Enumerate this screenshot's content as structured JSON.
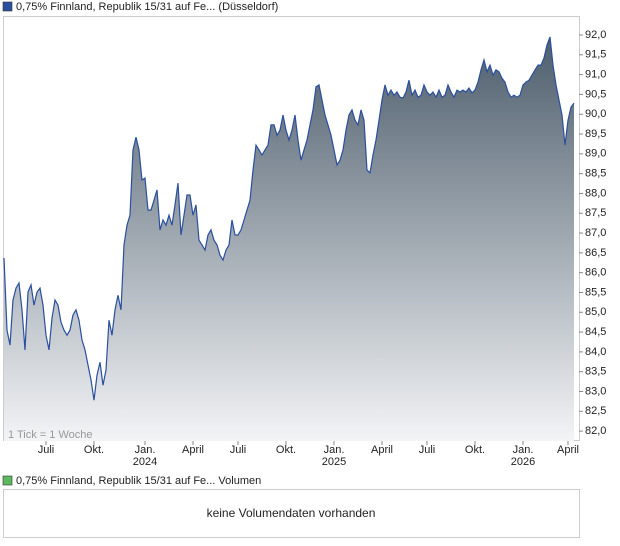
{
  "chart_data": {
    "type": "area",
    "legend": "0,75% Finnland, Republik 15/31 auf Fe... (Düsseldorf)",
    "annotation": "1 Tick = 1 Woche",
    "color": "#2a4f9e",
    "values": [
      86.37,
      84.55,
      84.17,
      85.31,
      85.61,
      85.74,
      85.06,
      84.05,
      85.51,
      85.69,
      85.18,
      85.51,
      85.61,
      85.18,
      84.42,
      84.05,
      84.85,
      85.31,
      85.18,
      84.75,
      84.55,
      84.42,
      84.55,
      84.93,
      85.06,
      84.8,
      84.3,
      84.05,
      83.67,
      83.29,
      82.78,
      83.41,
      83.74,
      83.16,
      83.54,
      84.8,
      84.42,
      85.06,
      85.43,
      85.06,
      86.7,
      87.2,
      87.45,
      89.1,
      89.42,
      89.1,
      88.34,
      88.39,
      87.58,
      87.58,
      87.83,
      88.09,
      87.08,
      87.33,
      87.2,
      87.45,
      87.2,
      87.71,
      88.26,
      86.95,
      87.45,
      87.96,
      87.96,
      87.45,
      87.71,
      86.82,
      86.7,
      86.57,
      86.95,
      87.08,
      86.82,
      86.7,
      86.44,
      86.32,
      86.57,
      86.7,
      87.33,
      86.95,
      86.95,
      87.08,
      87.33,
      87.58,
      87.83,
      88.59,
      89.22,
      89.1,
      88.97,
      89.1,
      89.22,
      89.73,
      89.73,
      89.47,
      89.6,
      89.98,
      89.6,
      89.35,
      89.6,
      89.98,
      89.35,
      88.84,
      89.1,
      89.35,
      89.73,
      90.11,
      90.69,
      90.74,
      90.36,
      89.98,
      89.73,
      89.47,
      89.1,
      88.72,
      88.84,
      89.1,
      89.6,
      89.98,
      90.11,
      89.85,
      89.73,
      90.11,
      89.85,
      88.59,
      88.52,
      88.97,
      89.35,
      89.85,
      90.36,
      90.74,
      90.48,
      90.61,
      90.48,
      90.56,
      90.43,
      90.41,
      90.56,
      90.86,
      90.48,
      90.61,
      90.43,
      90.48,
      90.74,
      90.56,
      90.48,
      90.56,
      90.43,
      90.61,
      90.43,
      90.48,
      90.74,
      90.56,
      90.43,
      90.61,
      90.56,
      90.61,
      90.56,
      90.66,
      90.54,
      90.61,
      90.81,
      91.12,
      91.37,
      91.07,
      91.24,
      90.99,
      91.12,
      91.07,
      90.91,
      90.81,
      90.56,
      90.43,
      90.48,
      90.43,
      90.48,
      90.74,
      90.81,
      90.86,
      90.99,
      91.12,
      91.24,
      91.24,
      91.42,
      91.75,
      91.95,
      91.24,
      90.74,
      90.36,
      89.98,
      89.22,
      89.85,
      90.18,
      90.28
    ],
    "xlim": [
      0,
      190
    ],
    "xticks": [
      {
        "value": 14,
        "label": "Juli"
      },
      {
        "value": 30,
        "label": "Okt."
      },
      {
        "value": 47,
        "label": "Jan.",
        "sublabel": "2024"
      },
      {
        "value": 63,
        "label": "April"
      },
      {
        "value": 78,
        "label": "Juli"
      },
      {
        "value": 94,
        "label": "Okt."
      },
      {
        "value": 110,
        "label": "Jan.",
        "sublabel": "2025"
      },
      {
        "value": 126,
        "label": "April"
      },
      {
        "value": 141,
        "label": "Juli"
      },
      {
        "value": 157,
        "label": "Okt."
      },
      {
        "value": 173,
        "label": "Jan.",
        "sublabel": "2026"
      },
      {
        "value": 188,
        "label": "April"
      }
    ],
    "ylim": [
      81.75,
      92.48
    ],
    "yticks": [
      {
        "value": 82,
        "label": "82,0"
      },
      {
        "value": 82.5,
        "label": "82,5"
      },
      {
        "value": 83,
        "label": "83,0"
      },
      {
        "value": 83.5,
        "label": "83,5"
      },
      {
        "value": 84,
        "label": "84,0"
      },
      {
        "value": 84.5,
        "label": "84,5"
      },
      {
        "value": 85,
        "label": "85,0"
      },
      {
        "value": 85.5,
        "label": "85,5"
      },
      {
        "value": 86,
        "label": "86,0"
      },
      {
        "value": 86.5,
        "label": "86,5"
      },
      {
        "value": 87,
        "label": "87,0"
      },
      {
        "value": 87.5,
        "label": "87,5"
      },
      {
        "value": 88,
        "label": "88,0"
      },
      {
        "value": 88.5,
        "label": "88,5"
      },
      {
        "value": 89,
        "label": "89,0"
      },
      {
        "value": 89.5,
        "label": "89,5"
      },
      {
        "value": 90,
        "label": "90,0"
      },
      {
        "value": 90.5,
        "label": "90,5"
      },
      {
        "value": 91,
        "label": "91,0"
      },
      {
        "value": 91.5,
        "label": "91,5"
      },
      {
        "value": 92,
        "label": "92,0"
      }
    ],
    "volume_panel": {
      "legend": "0,75% Finnland, Republik 15/31 auf Fe... Volumen",
      "color": "#5cb85c",
      "message": "keine Volumendaten vorhanden"
    }
  }
}
